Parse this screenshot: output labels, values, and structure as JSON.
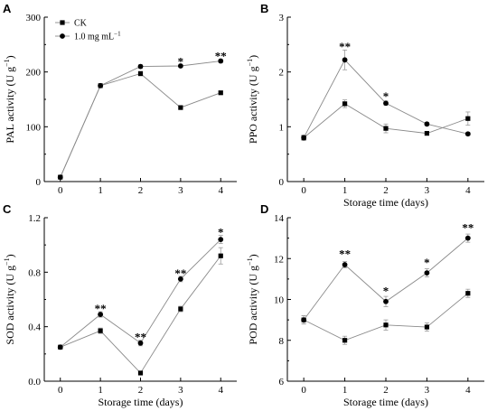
{
  "chart_data": [
    {
      "type": "line",
      "panel": "A",
      "xlabel": "",
      "ylabel": "PAL activity (U g⁻¹)",
      "x": [
        0,
        1,
        2,
        3,
        4
      ],
      "xlim": [
        -0.4,
        4.4
      ],
      "ylim": [
        0,
        300
      ],
      "yticks": [
        0,
        100,
        200,
        300
      ],
      "ytick_labels": [
        "0",
        "100",
        "200",
        "300"
      ],
      "series": [
        {
          "name": "CK",
          "marker": "square",
          "values": [
            8,
            175,
            197,
            135,
            162
          ],
          "errors": [
            0,
            3,
            4,
            3,
            3
          ]
        },
        {
          "name": "1.0 mg mL⁻¹",
          "marker": "circle",
          "values": [
            8,
            175,
            210,
            211,
            220
          ],
          "errors": [
            0,
            3,
            3,
            3,
            3
          ]
        }
      ],
      "significance": [
        {
          "x": 3,
          "label": "*",
          "y": 218
        },
        {
          "x": 4,
          "label": "**",
          "y": 228
        }
      ],
      "legend": "top-left"
    },
    {
      "type": "line",
      "panel": "B",
      "xlabel": "Storage time (days)",
      "ylabel": "PPO activity (U g⁻¹)",
      "x": [
        0,
        1,
        2,
        3,
        4
      ],
      "xlim": [
        -0.4,
        4.4
      ],
      "ylim": [
        0,
        3
      ],
      "yticks": [
        0,
        1,
        2,
        3
      ],
      "ytick_labels": [
        "0",
        "1",
        "2",
        "3"
      ],
      "series": [
        {
          "name": "CK",
          "marker": "square",
          "values": [
            0.8,
            1.42,
            0.97,
            0.88,
            1.15
          ],
          "errors": [
            0.05,
            0.07,
            0.08,
            0.03,
            0.12
          ]
        },
        {
          "name": "1.0 mg mL⁻¹",
          "marker": "circle",
          "values": [
            0.8,
            2.22,
            1.43,
            1.05,
            0.87
          ],
          "errors": [
            0.05,
            0.18,
            0.04,
            0.03,
            0.03
          ]
        }
      ],
      "significance": [
        {
          "x": 1,
          "label": "**",
          "y": 2.46
        },
        {
          "x": 2,
          "label": "*",
          "y": 1.55
        }
      ]
    },
    {
      "type": "line",
      "panel": "C",
      "xlabel": "Storage time (days)",
      "ylabel": "SOD activity (U g⁻¹)",
      "x": [
        0,
        1,
        2,
        3,
        4
      ],
      "xlim": [
        -0.4,
        4.4
      ],
      "ylim": [
        0,
        1.2
      ],
      "yticks": [
        0,
        0.4,
        0.8,
        1.2
      ],
      "ytick_labels": [
        "0.0",
        "0.4",
        "0.8",
        "1.2"
      ],
      "series": [
        {
          "name": "CK",
          "marker": "square",
          "values": [
            0.25,
            0.37,
            0.06,
            0.53,
            0.92
          ],
          "errors": [
            0.01,
            0.02,
            0.01,
            0.02,
            0.06
          ]
        },
        {
          "name": "1.0 mg mL⁻¹",
          "marker": "circle",
          "values": [
            0.25,
            0.49,
            0.28,
            0.75,
            1.04
          ],
          "errors": [
            0.01,
            0.02,
            0.02,
            0.02,
            0.03
          ]
        }
      ],
      "significance": [
        {
          "x": 1,
          "label": "**",
          "y": 0.53
        },
        {
          "x": 2,
          "label": "**",
          "y": 0.32
        },
        {
          "x": 3,
          "label": "**",
          "y": 0.79
        },
        {
          "x": 4,
          "label": "*",
          "y": 1.09
        }
      ]
    },
    {
      "type": "line",
      "panel": "D",
      "xlabel": "Storage time (days)",
      "ylabel": "POD activity (U g⁻¹)",
      "x": [
        0,
        1,
        2,
        3,
        4
      ],
      "xlim": [
        -0.4,
        4.4
      ],
      "ylim": [
        6,
        14
      ],
      "yticks": [
        6,
        8,
        10,
        12,
        14
      ],
      "ytick_labels": [
        "6",
        "8",
        "10",
        "12",
        "14"
      ],
      "series": [
        {
          "name": "CK",
          "marker": "square",
          "values": [
            9.0,
            8.0,
            8.75,
            8.65,
            10.3
          ],
          "errors": [
            0.2,
            0.2,
            0.25,
            0.2,
            0.2
          ]
        },
        {
          "name": "1.0 mg mL⁻¹",
          "marker": "circle",
          "values": [
            9.0,
            11.7,
            9.9,
            11.3,
            13.0
          ],
          "errors": [
            0.2,
            0.15,
            0.25,
            0.2,
            0.2
          ]
        }
      ],
      "significance": [
        {
          "x": 1,
          "label": "**",
          "y": 12.2
        },
        {
          "x": 2,
          "label": "*",
          "y": 10.4
        },
        {
          "x": 3,
          "label": "*",
          "y": 11.8
        },
        {
          "x": 4,
          "label": "**",
          "y": 13.5
        }
      ]
    }
  ]
}
